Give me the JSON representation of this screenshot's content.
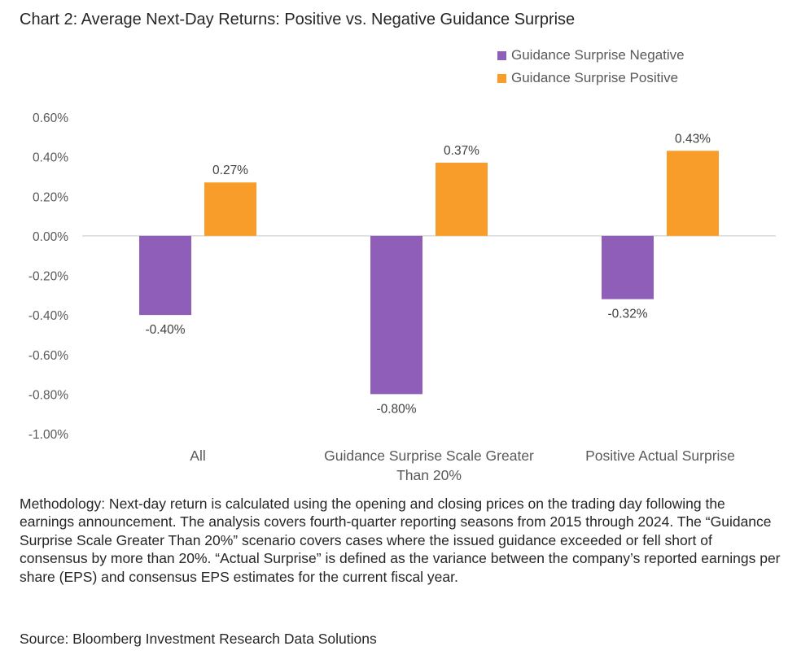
{
  "title": "Chart 2: Average Next-Day Returns: Positive vs. Negative Guidance Surprise",
  "chart_data": {
    "type": "bar",
    "title": "Chart 2: Average Next-Day Returns: Positive vs. Negative Guidance Surprise",
    "categories": [
      "All",
      "Guidance Surprise Scale Greater Than 20%",
      "Positive Actual Surprise"
    ],
    "series": [
      {
        "name": "Guidance Surprise Negative",
        "values": [
          -0.4,
          -0.8,
          -0.32
        ],
        "labels": [
          "-0.40%",
          "-0.80%",
          "-0.32%"
        ],
        "color": "#8E5EB8"
      },
      {
        "name": "Guidance Surprise Positive",
        "values": [
          0.27,
          0.37,
          0.43
        ],
        "labels": [
          "0.27%",
          "0.37%",
          "0.43%"
        ],
        "color": "#F99D2A"
      }
    ],
    "ylim": [
      -1.0,
      0.6
    ],
    "yticks": [
      0.6,
      0.4,
      0.2,
      0.0,
      -0.2,
      -0.4,
      -0.6,
      -0.8,
      -1.0
    ],
    "ytick_labels": [
      "0.60%",
      "0.40%",
      "0.20%",
      "0.00%",
      "-0.20%",
      "-0.40%",
      "-0.60%",
      "-0.80%",
      "-1.00%"
    ],
    "legend": "top-right",
    "grid": false,
    "category_lines": [
      [
        "All"
      ],
      [
        "Guidance Surprise Scale Greater",
        "Than 20%"
      ],
      [
        "Positive Actual Surprise"
      ]
    ]
  },
  "footer": {
    "methodology": "Methodology: Next-day return is calculated using the opening and closing prices on the trading day following the earnings announcement. The analysis covers fourth-quarter reporting seasons from 2015 through 2024. The “Guidance Surprise Scale Greater Than 20%” scenario covers cases where the issued guidance exceeded or fell short of consensus by more than 20%. “Actual Surprise” is defined as the variance between the company’s reported earnings per share (EPS) and consensus EPS estimates for the current fiscal year.",
    "source": "Source: Bloomberg Investment Research Data Solutions"
  }
}
